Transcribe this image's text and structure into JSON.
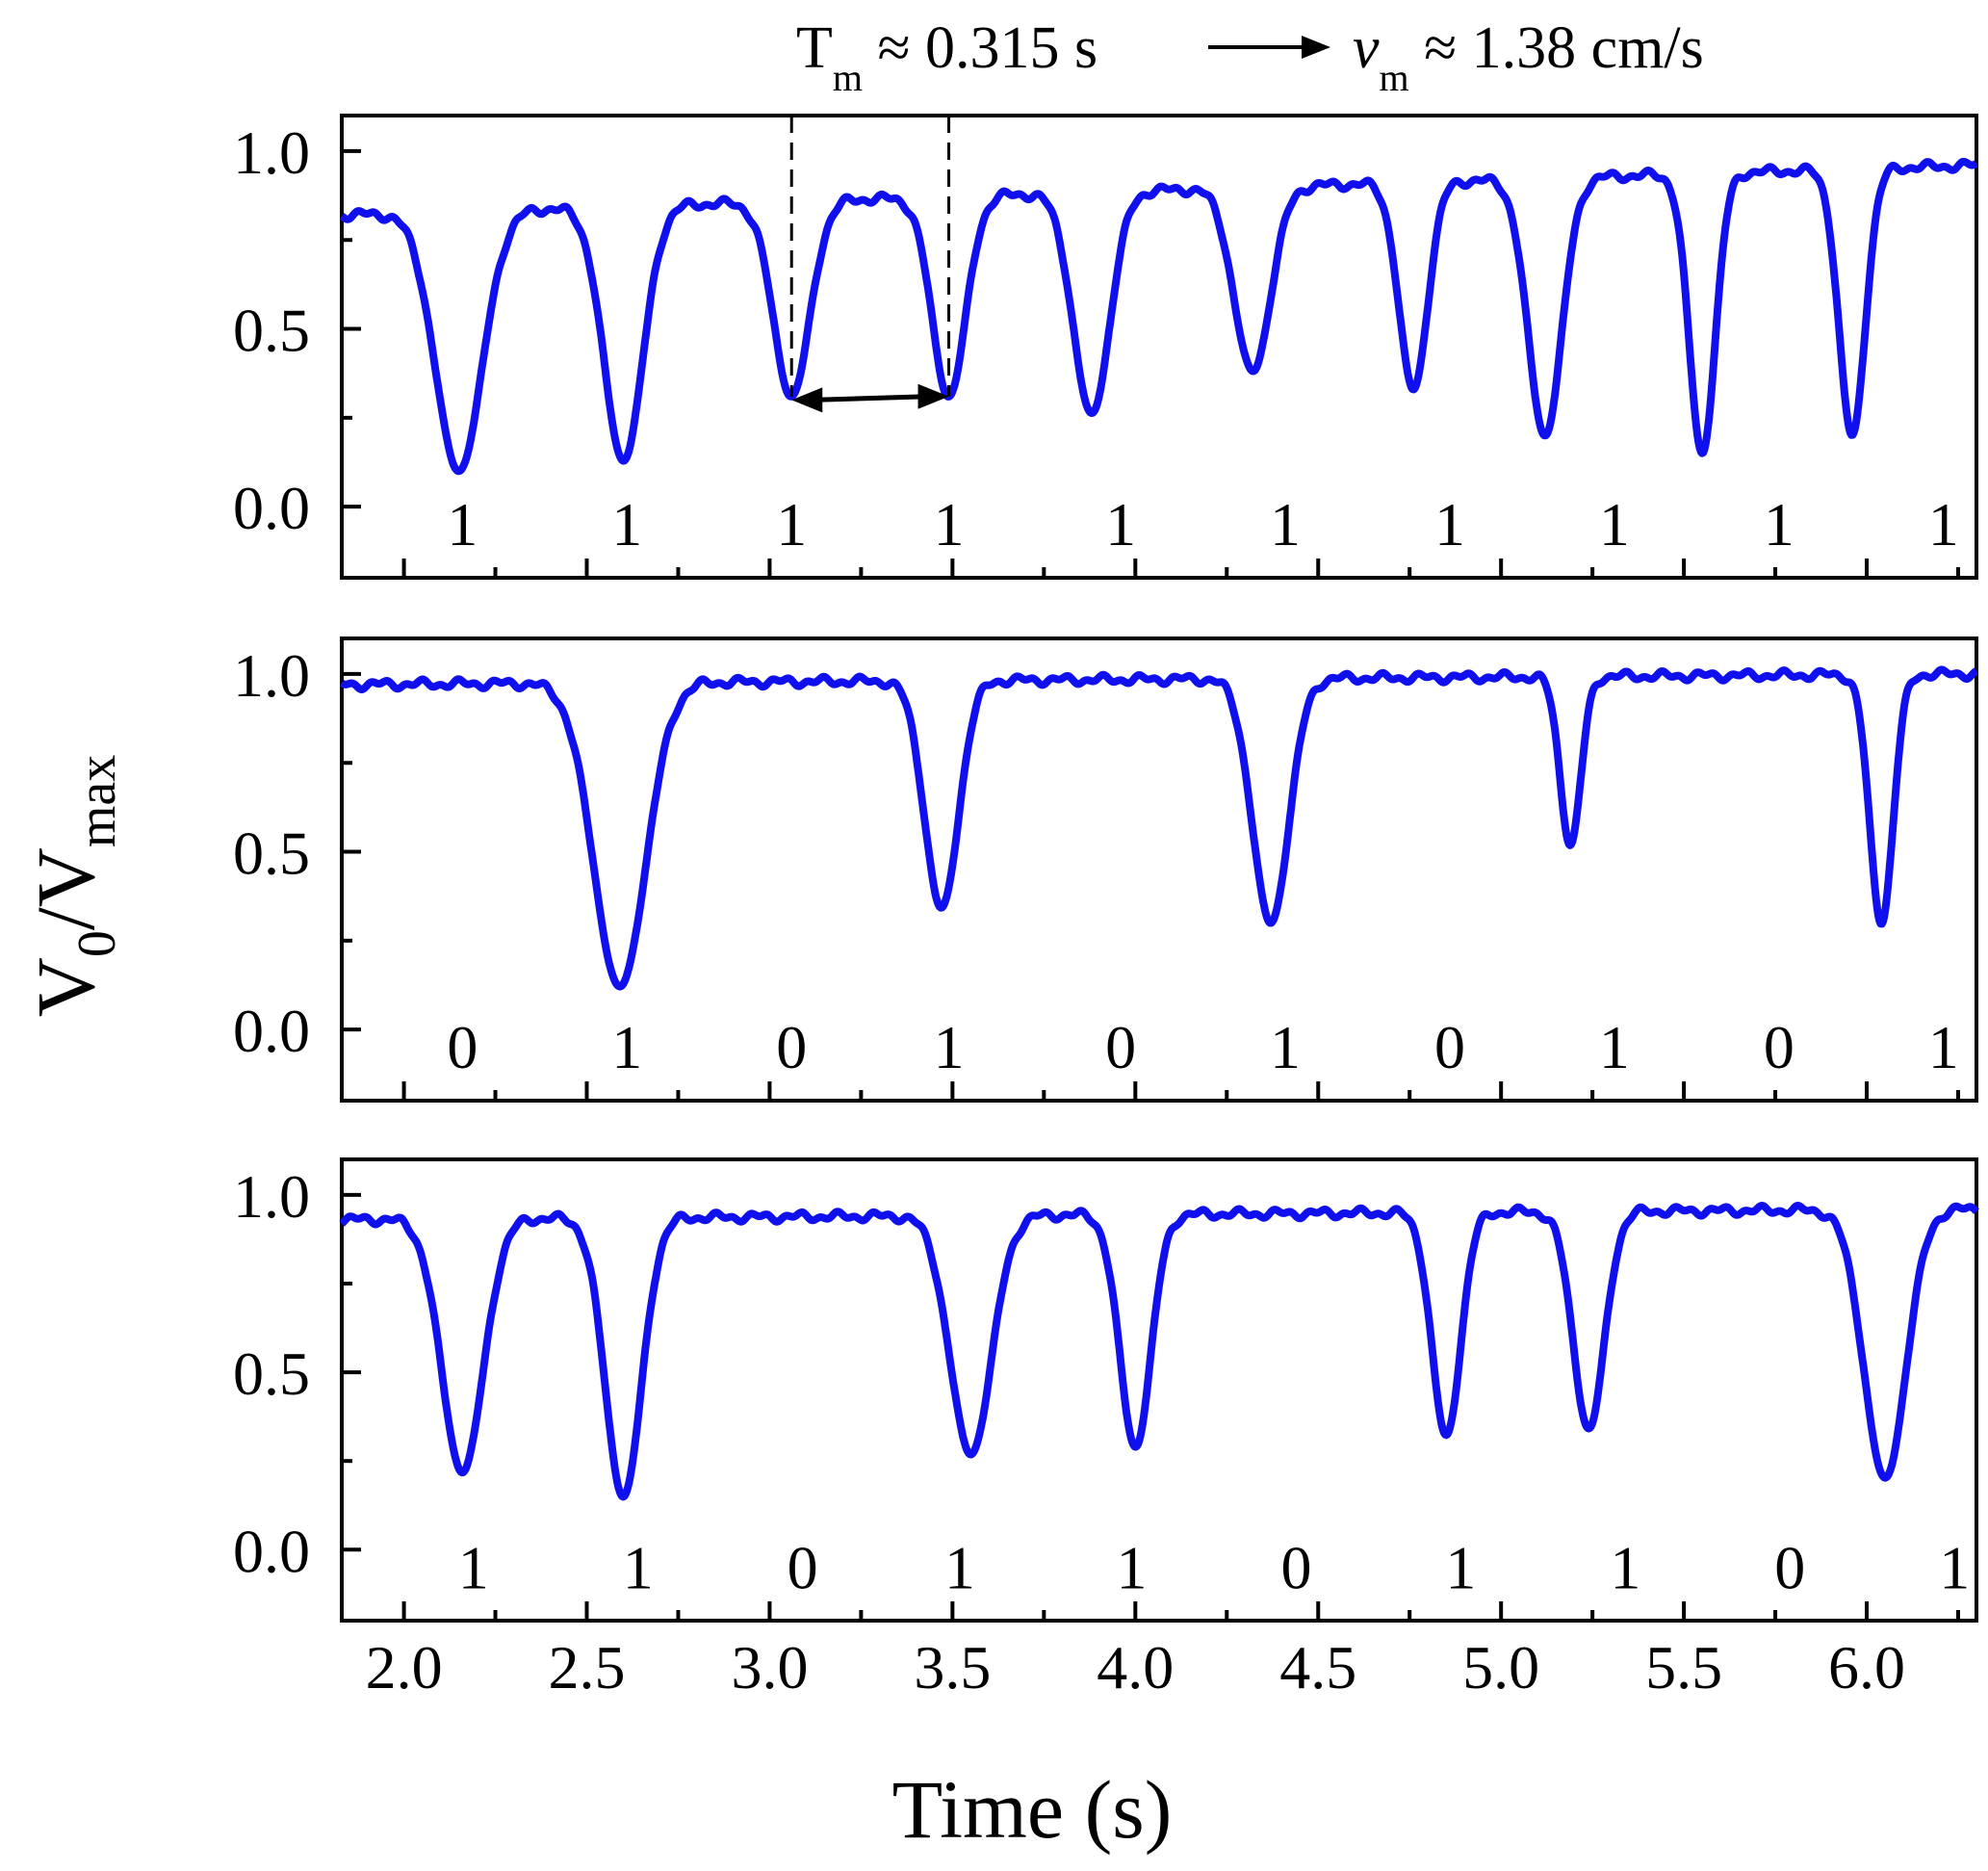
{
  "annotation": {
    "period_label": "T",
    "period_sub": "m",
    "period_value": " ≈ 0.315 s",
    "velocity_label": "v",
    "velocity_sub": "m",
    "velocity_value": " ≈ 1.38 cm/s"
  },
  "colors": {
    "trace": "#1010ee",
    "axis": "#000000"
  },
  "chart_data": {
    "type": "line",
    "xlabel": "Time (s)",
    "ylabel": {
      "main": "V",
      "sub0": "0",
      "slash": "/V",
      "sub1": "max"
    },
    "xlim": [
      1.83,
      6.3
    ],
    "ylim": [
      -0.2,
      1.1
    ],
    "xticks": [
      2.0,
      2.5,
      3.0,
      3.5,
      4.0,
      4.5,
      5.0,
      5.5,
      6.0
    ],
    "xtick_labels": [
      "2.0",
      "2.5",
      "3.0",
      "3.5",
      "4.0",
      "4.5",
      "5.0",
      "5.5",
      "6.0"
    ],
    "yticks": [
      0.0,
      0.5,
      1.0
    ],
    "ytick_labels": [
      "0.0",
      "0.5",
      "1.0"
    ],
    "panels": [
      {
        "baseline": 0.82,
        "ramp": 0.14,
        "dips": [
          {
            "t": 2.15,
            "depth": 0.1,
            "width": 0.09
          },
          {
            "t": 2.6,
            "depth": 0.13,
            "width": 0.075
          },
          {
            "t": 3.06,
            "depth": 0.31,
            "width": 0.07
          },
          {
            "t": 3.49,
            "depth": 0.31,
            "width": 0.065
          },
          {
            "t": 3.88,
            "depth": 0.26,
            "width": 0.07
          },
          {
            "t": 4.32,
            "depth": 0.38,
            "width": 0.07
          },
          {
            "t": 4.76,
            "depth": 0.33,
            "width": 0.055
          },
          {
            "t": 5.12,
            "depth": 0.2,
            "width": 0.065
          },
          {
            "t": 5.55,
            "depth": 0.15,
            "width": 0.05
          },
          {
            "t": 5.96,
            "depth": 0.2,
            "width": 0.05
          }
        ],
        "bit_x": [
          2.16,
          2.61,
          3.06,
          3.49,
          3.96,
          4.41,
          4.86,
          5.31,
          5.76,
          6.21
        ],
        "bits": [
          "1",
          "1",
          "1",
          "1",
          "1",
          "1",
          "1",
          "1",
          "1",
          "1"
        ],
        "period_markers": [
          3.06,
          3.49
        ],
        "period_arrow": {
          "x1": 3.06,
          "y1": 0.3,
          "x2": 3.49,
          "y2": 0.31
        }
      },
      {
        "baseline": 0.97,
        "ramp": 0.03,
        "dips": [
          {
            "t": 2.59,
            "depth": 0.12,
            "width": 0.1
          },
          {
            "t": 3.47,
            "depth": 0.34,
            "width": 0.065
          },
          {
            "t": 4.37,
            "depth": 0.3,
            "width": 0.07
          },
          {
            "t": 5.19,
            "depth": 0.52,
            "width": 0.04
          },
          {
            "t": 6.04,
            "depth": 0.3,
            "width": 0.045
          }
        ],
        "bit_x": [
          2.16,
          2.61,
          3.06,
          3.49,
          3.96,
          4.41,
          4.86,
          5.31,
          5.76,
          6.21
        ],
        "bits": [
          "0",
          "1",
          "0",
          "1",
          "0",
          "1",
          "0",
          "1",
          "0",
          "1"
        ]
      },
      {
        "baseline": 0.93,
        "ramp": 0.03,
        "dips": [
          {
            "t": 2.16,
            "depth": 0.22,
            "width": 0.08
          },
          {
            "t": 2.6,
            "depth": 0.15,
            "width": 0.07
          },
          {
            "t": 3.55,
            "depth": 0.27,
            "width": 0.08
          },
          {
            "t": 4.0,
            "depth": 0.29,
            "width": 0.06
          },
          {
            "t": 4.85,
            "depth": 0.32,
            "width": 0.055
          },
          {
            "t": 5.24,
            "depth": 0.34,
            "width": 0.06
          },
          {
            "t": 6.05,
            "depth": 0.2,
            "width": 0.08
          }
        ],
        "bit_x": [
          2.19,
          2.64,
          3.09,
          3.52,
          3.99,
          4.44,
          4.89,
          5.34,
          5.79,
          6.24
        ],
        "bits": [
          "1",
          "1",
          "0",
          "1",
          "1",
          "0",
          "1",
          "1",
          "0",
          "1"
        ]
      }
    ]
  }
}
